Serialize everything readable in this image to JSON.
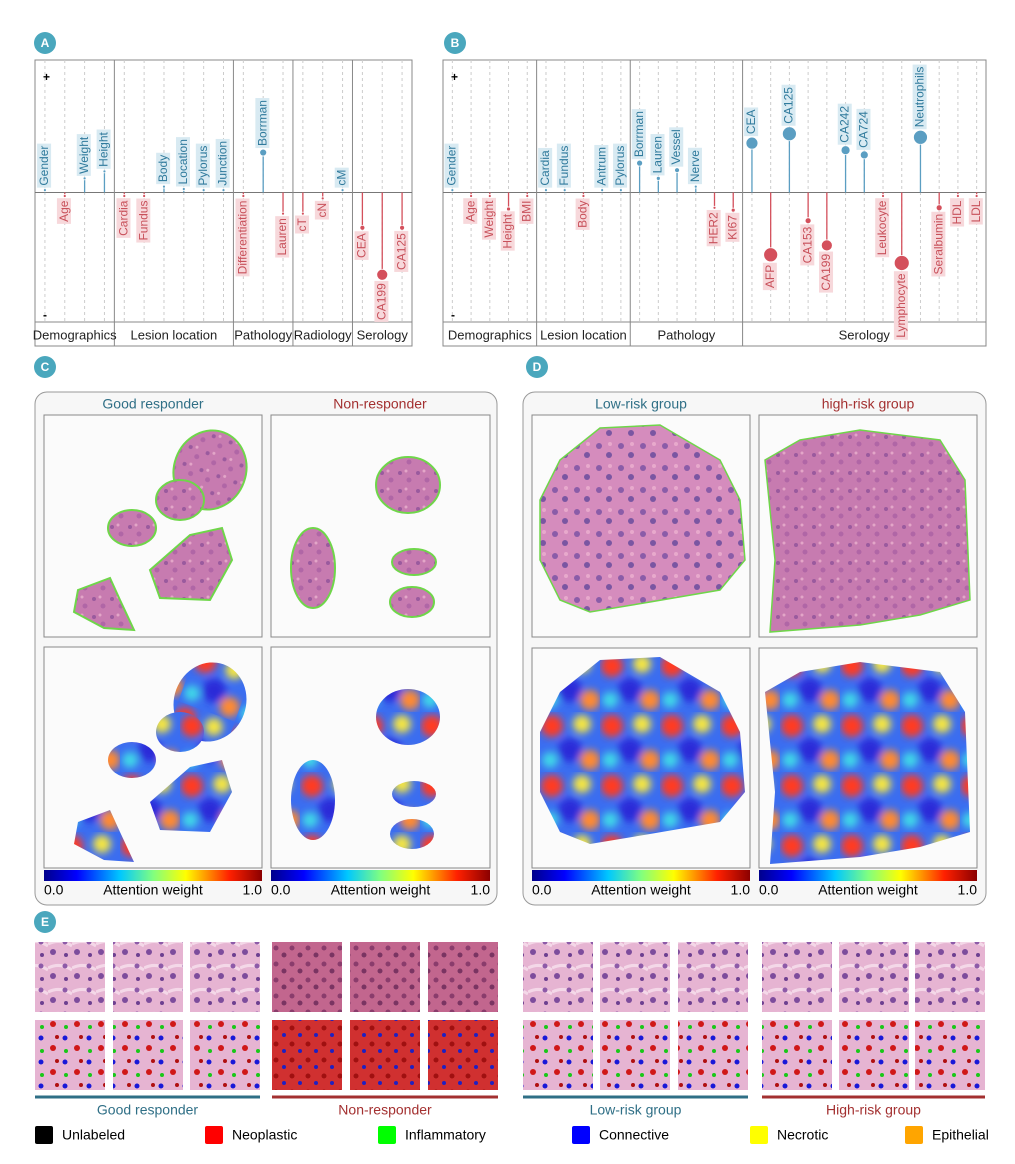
{
  "panel_a": {
    "letter": "A",
    "chart": {
      "type": "lollipop",
      "top_label": "+",
      "bottom_label": "-",
      "ylim": [
        -1,
        1
      ],
      "colors": {
        "positive": "#5b9ec2",
        "negative": "#d4505c"
      },
      "groups": [
        {
          "name": "Demographics",
          "features": [
            {
              "name": "Gender",
              "value": 0.02,
              "size": 1.5
            },
            {
              "name": "Age",
              "value": -0.03,
              "size": 1.5
            },
            {
              "name": "Weight",
              "value": 0.12,
              "size": 1.5
            },
            {
              "name": "Height",
              "value": 0.18,
              "size": 1.5
            }
          ]
        },
        {
          "name": "Lesion location",
          "features": [
            {
              "name": "Cardia",
              "value": -0.03,
              "size": 1.5
            },
            {
              "name": "Fundus",
              "value": -0.03,
              "size": 1.5
            },
            {
              "name": "Body",
              "value": 0.05,
              "size": 1.5
            },
            {
              "name": "Location",
              "value": 0.03,
              "size": 1.5
            },
            {
              "name": "Pylorus",
              "value": 0.02,
              "size": 1.5
            },
            {
              "name": "Junction",
              "value": 0.02,
              "size": 1.5
            }
          ]
        },
        {
          "name": "Pathology",
          "features": [
            {
              "name": "Differentiation",
              "value": -0.03,
              "size": 1.5
            },
            {
              "name": "Borrman",
              "value": 0.34,
              "size": 3.5
            },
            {
              "name": "Lauren",
              "value": -0.18,
              "size": 1.5
            }
          ]
        },
        {
          "name": "Radiology",
          "features": [
            {
              "name": "cT",
              "value": -0.18,
              "size": 1.5
            },
            {
              "name": "cN",
              "value": -0.05,
              "size": 1.5
            },
            {
              "name": "cM",
              "value": 0.02,
              "size": 1.5
            }
          ]
        },
        {
          "name": "Serology",
          "features": [
            {
              "name": "CEA",
              "value": -0.3,
              "size": 2.5
            },
            {
              "name": "CA199",
              "value": -0.7,
              "size": 5.5
            },
            {
              "name": "CA125",
              "value": -0.3,
              "size": 2.5
            }
          ]
        }
      ]
    }
  },
  "panel_b": {
    "letter": "B",
    "chart": {
      "type": "lollipop",
      "top_label": "+",
      "bottom_label": "-",
      "ylim": [
        -1,
        1
      ],
      "colors": {
        "positive": "#5b9ec2",
        "negative": "#d4505c"
      },
      "groups": [
        {
          "name": "Demographics",
          "features": [
            {
              "name": "Gender",
              "value": 0.02,
              "size": 1.5
            },
            {
              "name": "Age",
              "value": -0.03,
              "size": 1.5
            },
            {
              "name": "Weight",
              "value": -0.03,
              "size": 1.5
            },
            {
              "name": "Height",
              "value": -0.14,
              "size": 2
            },
            {
              "name": "BMI",
              "value": -0.03,
              "size": 1.5
            }
          ]
        },
        {
          "name": "Lesion location",
          "features": [
            {
              "name": "Cardia",
              "value": 0.02,
              "size": 1.5
            },
            {
              "name": "Fundus",
              "value": 0.02,
              "size": 1.5
            },
            {
              "name": "Body",
              "value": -0.03,
              "size": 1.5
            },
            {
              "name": "Antrum",
              "value": 0.02,
              "size": 1.5
            },
            {
              "name": "Pylorus",
              "value": 0.02,
              "size": 1.5
            }
          ]
        },
        {
          "name": "Pathology",
          "features": [
            {
              "name": "Borrman",
              "value": 0.25,
              "size": 3
            },
            {
              "name": "Lauren",
              "value": 0.12,
              "size": 2
            },
            {
              "name": "Vessel",
              "value": 0.19,
              "size": 2.5
            },
            {
              "name": "Nerve",
              "value": 0.05,
              "size": 1.5
            },
            {
              "name": "HER2",
              "value": -0.13,
              "size": 1.5
            },
            {
              "name": "KI67",
              "value": -0.15,
              "size": 2
            }
          ]
        },
        {
          "name": "Serology",
          "features": [
            {
              "name": "CEA",
              "value": 0.42,
              "size": 6
            },
            {
              "name": "AFP",
              "value": -0.53,
              "size": 7
            },
            {
              "name": "CA125",
              "value": 0.5,
              "size": 7
            },
            {
              "name": "CA153",
              "value": -0.24,
              "size": 3
            },
            {
              "name": "CA199",
              "value": -0.45,
              "size": 5.5
            },
            {
              "name": "CA242",
              "value": 0.36,
              "size": 4.5
            },
            {
              "name": "CA724",
              "value": 0.32,
              "size": 4
            },
            {
              "name": "Leukocyte",
              "value": -0.03,
              "size": 1.5
            },
            {
              "name": "Lymphocyte",
              "value": -0.6,
              "size": 7.5
            },
            {
              "name": "Neutrophils",
              "value": 0.47,
              "size": 7
            },
            {
              "name": "Seralbumin",
              "value": -0.13,
              "size": 3
            },
            {
              "name": "HDL",
              "value": -0.03,
              "size": 1.5
            },
            {
              "name": "LDL",
              "value": -0.03,
              "size": 1.5
            }
          ]
        }
      ]
    }
  },
  "panel_c": {
    "letter": "C",
    "columns": [
      {
        "title": "Good  responder",
        "color": "#2f6f86"
      },
      {
        "title": "Non-responder",
        "color": "#a33030"
      }
    ],
    "colorbar": {
      "min_label": "0.0",
      "title": "Attention weight",
      "max_label": "1.0"
    }
  },
  "panel_d": {
    "letter": "D",
    "columns": [
      {
        "title": "Low-risk group",
        "color": "#2f6f86"
      },
      {
        "title": "high-risk group",
        "color": "#a33030"
      }
    ],
    "colorbar": {
      "min_label": "0.0",
      "title": "Attention weight",
      "max_label": "1.0"
    }
  },
  "panel_e": {
    "letter": "E",
    "groups": [
      {
        "title": "Good  responder",
        "color": "#2f6f86"
      },
      {
        "title": "Non-responder",
        "color": "#a33030"
      },
      {
        "title": "Low-risk group",
        "color": "#2f6f86"
      },
      {
        "title": "High-risk group",
        "color": "#a33030"
      }
    ],
    "legend": [
      {
        "name": "Unlabeled",
        "color": "#000000"
      },
      {
        "name": "Neoplastic",
        "color": "#ff0000"
      },
      {
        "name": "Inflammatory",
        "color": "#00ff00"
      },
      {
        "name": "Connective",
        "color": "#0000ff"
      },
      {
        "name": "Necrotic",
        "color": "#ffff00"
      },
      {
        "name": "Epithelial",
        "color": "#ffa500"
      }
    ]
  }
}
